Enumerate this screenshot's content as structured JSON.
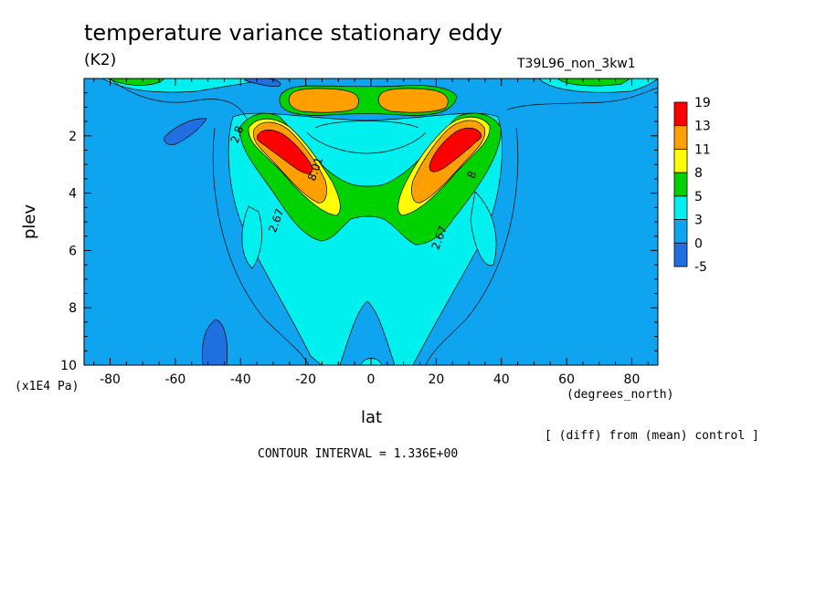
{
  "header": {
    "title": "temperature variance stationary eddy",
    "units": "(K2)",
    "run_name": "T39L96_non_3kw1"
  },
  "footer": {
    "diff_note": "[ (diff) from (mean) control ]",
    "contour_interval": "CONTOUR INTERVAL = 1.336E+00"
  },
  "colors": {
    "levels": [
      "#1f6fe0",
      "#0fa4f0",
      "#00f0f0",
      "#00d200",
      "#ffff00",
      "#ffa000",
      "#ff0000"
    ],
    "line": "#000000"
  },
  "chart_data": {
    "type": "heatmap",
    "title": "temperature variance stationary eddy",
    "subtitle": "(K2)",
    "xlabel": "lat",
    "x_units": "(degrees_north)",
    "ylabel": "plev",
    "y_units": "(x1E4 Pa)",
    "xlim": [
      -88,
      88
    ],
    "ylim": [
      0,
      10
    ],
    "y_inverted": true,
    "x_ticks": [
      "-80",
      "-60",
      "-40",
      "-20",
      "0",
      "20",
      "40",
      "60",
      "80"
    ],
    "y_ticks": [
      "2",
      "4",
      "6",
      "8",
      "10"
    ],
    "colorbar_labels": [
      "19",
      "13",
      "11",
      "8",
      "5",
      "3",
      "0",
      "-5"
    ],
    "contour_labels": [
      {
        "text": "2.67",
        "lat": -28,
        "plev": 5.0
      },
      {
        "text": "2.67",
        "lat": 22,
        "plev": 5.6
      },
      {
        "text": "8.01",
        "lat": -16,
        "plev": 3.2
      },
      {
        "text": "8",
        "lat": 32,
        "plev": 3.4
      },
      {
        "text": "2.8",
        "lat": -40,
        "plev": 2.0
      }
    ],
    "features": [
      {
        "name": "max-south",
        "lat": -28,
        "plev": 2.6,
        "value": 19
      },
      {
        "name": "max-north",
        "lat": 28,
        "plev": 2.6,
        "value": 19
      },
      {
        "name": "upper-south",
        "lat": -12,
        "plev": 0.9,
        "value": 13
      },
      {
        "name": "upper-north",
        "lat": 14,
        "plev": 0.9,
        "value": 13
      },
      {
        "name": "neg-lowlevel-south",
        "lat": -50,
        "plev": 9.4,
        "value": -5
      },
      {
        "name": "neg-upper-south",
        "lat": -57,
        "plev": 1.8,
        "value": -5
      }
    ]
  }
}
